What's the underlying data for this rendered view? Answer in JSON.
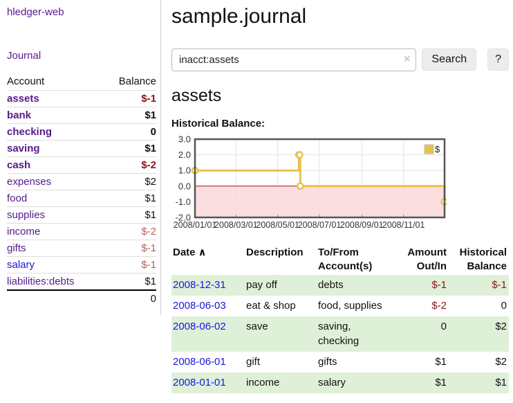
{
  "sidebar": {
    "brand": "hledger-web",
    "nav_journal": "Journal",
    "accounts": {
      "headers": {
        "account": "Account",
        "balance": "Balance"
      },
      "rows": [
        {
          "name": "assets",
          "depth": 1,
          "balance": "$-1",
          "in_account": true,
          "negative": "strong",
          "link_color": "purple"
        },
        {
          "name": "bank",
          "depth": 2,
          "balance": "$1",
          "in_account": true,
          "negative": "none",
          "link_color": "purple"
        },
        {
          "name": "checking",
          "depth": 3,
          "balance": "0",
          "in_account": true,
          "negative": "none",
          "link_color": "purple"
        },
        {
          "name": "saving",
          "depth": 3,
          "balance": "$1",
          "in_account": true,
          "negative": "none",
          "link_color": "purple"
        },
        {
          "name": "cash",
          "depth": 2,
          "balance": "$-2",
          "in_account": true,
          "negative": "strong",
          "link_color": "purple"
        },
        {
          "name": "expenses",
          "depth": 1,
          "balance": "$2",
          "in_account": false,
          "negative": "none",
          "link_color": "purple"
        },
        {
          "name": "food",
          "depth": 2,
          "balance": "$1",
          "in_account": false,
          "negative": "none",
          "link_color": "purple"
        },
        {
          "name": "supplies",
          "depth": 2,
          "balance": "$1",
          "in_account": false,
          "negative": "none",
          "link_color": "purple"
        },
        {
          "name": "income",
          "depth": 1,
          "balance": "$-2",
          "in_account": false,
          "negative": "soft",
          "link_color": "purple"
        },
        {
          "name": "gifts",
          "depth": 2,
          "balance": "$-1",
          "in_account": false,
          "negative": "soft",
          "link_color": "purple"
        },
        {
          "name": "salary",
          "depth": 2,
          "balance": "$-1",
          "in_account": false,
          "negative": "soft",
          "link_color": "blue"
        },
        {
          "name": "liabilities:debts",
          "depth": 1,
          "balance": "$1",
          "in_account": false,
          "negative": "none",
          "link_color": "purple"
        }
      ],
      "total": "0"
    }
  },
  "main": {
    "title": "sample.journal",
    "search": {
      "value": "inacct:assets",
      "clear_icon": "×",
      "search_button": "Search",
      "help_button": "?"
    },
    "account_heading": "assets",
    "chart_title": "Historical Balance:"
  },
  "chart_data": {
    "type": "line",
    "title": "Historical Balance:",
    "series": [
      {
        "name": "$",
        "style": "steps",
        "color": "#e7c14b",
        "points": [
          [
            "2008-01-01",
            1
          ],
          [
            "2008-06-01",
            2
          ],
          [
            "2008-06-02",
            2
          ],
          [
            "2008-06-03",
            0
          ],
          [
            "2008-12-31",
            -1
          ]
        ]
      }
    ],
    "xlim": [
      "2008-01-01",
      "2008-12-31"
    ],
    "ylim": [
      -2,
      3
    ],
    "x_ticks": [
      {
        "value": "2008-01-01",
        "label": "2008/01/01"
      },
      {
        "value": "2008-03-01",
        "label": "2008/03/01"
      },
      {
        "value": "2008-05-01",
        "label": "2008/05/01"
      },
      {
        "value": "2008-07-01",
        "label": "2008/07/01"
      },
      {
        "value": "2008-09-01",
        "label": "2008/09/01"
      },
      {
        "value": "2008-11-01",
        "label": "2008/11/01"
      }
    ],
    "y_ticks": [
      {
        "value": 3,
        "label": "3.0"
      },
      {
        "value": 2,
        "label": "2.0"
      },
      {
        "value": 1,
        "label": "1.0"
      },
      {
        "value": 0,
        "label": "0.0"
      },
      {
        "value": -1,
        "label": "-1.0"
      },
      {
        "value": -2,
        "label": "-2.0"
      }
    ],
    "legend_position": "top-right",
    "grid": true,
    "colors": {
      "negative_region": "#fcdee0",
      "zero_line": "#8b1a1a",
      "grid": "#e3e3e3",
      "border": "#555555",
      "marker_fill": "#ffffff",
      "axis_text": "#333333"
    }
  },
  "register_table": {
    "headers": [
      {
        "label": "Date",
        "sort_icon": "∧"
      },
      {
        "label": "Description"
      },
      {
        "label": "To/From Account(s)"
      },
      {
        "label": "Amount Out/In",
        "align": "right"
      },
      {
        "label": "Historical Balance",
        "align": "right"
      }
    ],
    "rows": [
      {
        "date": "2008-12-31",
        "description": "pay off",
        "to_from": "debts",
        "amount": "$-1",
        "amount_negative": true,
        "balance": "$-1",
        "balance_negative": true
      },
      {
        "date": "2008-06-03",
        "description": "eat & shop",
        "to_from": "food, supplies",
        "amount": "$-2",
        "amount_negative": true,
        "balance": "0",
        "balance_negative": false
      },
      {
        "date": "2008-06-02",
        "description": "save",
        "to_from": "saving, checking",
        "amount": "0",
        "amount_negative": false,
        "balance": "$2",
        "balance_negative": false
      },
      {
        "date": "2008-06-01",
        "description": "gift",
        "to_from": "gifts",
        "amount": "$1",
        "amount_negative": false,
        "balance": "$2",
        "balance_negative": false
      },
      {
        "date": "2008-01-01",
        "description": "income",
        "to_from": "salary",
        "amount": "$1",
        "amount_negative": false,
        "balance": "$1",
        "balance_negative": false
      }
    ]
  },
  "colors": {
    "accent_purple": "#551a8b",
    "link_blue": "#1717dd",
    "negative_strong": "#8b1313",
    "negative_soft": "#b65e5e",
    "row_stripe_green": "#dff0d8",
    "series_gold": "#e7c14b"
  }
}
